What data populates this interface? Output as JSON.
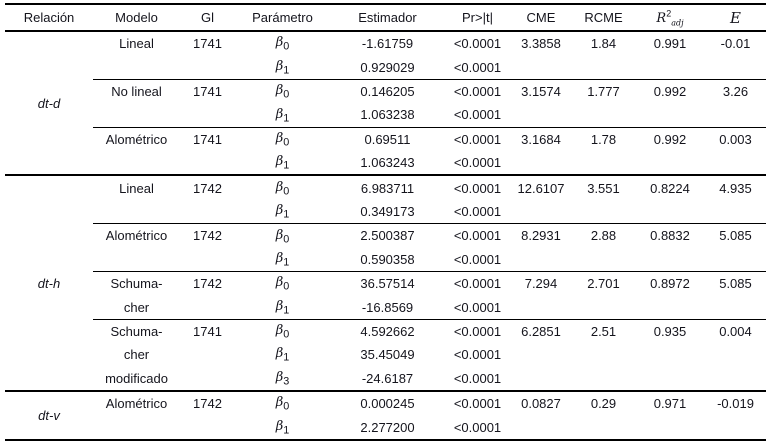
{
  "colors": {
    "text": "#14141c",
    "rule": "#000000",
    "background": "#ffffff"
  },
  "table": {
    "header": {
      "relacion": "Relación",
      "modelo": "Modelo",
      "gl": "Gl",
      "parametro": "Parámetro",
      "estimador": "Estimador",
      "pr": "Pr>|t|",
      "cme": "CME",
      "rcme": "RCME",
      "r2": {
        "base": "R",
        "sup": "2",
        "sub": "adj"
      },
      "e": "E"
    },
    "groups": [
      {
        "label": "dt-d",
        "start": 0,
        "span": 6
      },
      {
        "label": "dt-h",
        "start": 6,
        "span": 9
      },
      {
        "label": "dt-v",
        "start": 15,
        "span": 2
      }
    ],
    "rows": [
      {
        "modelo": "Lineal",
        "gl": "1741",
        "param": "β0",
        "est": "-1.61759",
        "pr": "<0.0001",
        "cme": "3.3858",
        "rcme": "1.84",
        "r2": "0.991",
        "e": "-0.01",
        "sep": "none"
      },
      {
        "modelo": "",
        "gl": "",
        "param": "β1",
        "est": "0.929029",
        "pr": "<0.0001",
        "cme": "",
        "rcme": "",
        "r2": "",
        "e": "",
        "sep": "partial"
      },
      {
        "modelo": "No lineal",
        "gl": "1741",
        "param": "β0",
        "est": "0.146205",
        "pr": "<0.0001",
        "cme": "3.1574",
        "rcme": "1.777",
        "r2": "0.992",
        "e": "3.26",
        "sep": "none"
      },
      {
        "modelo": "",
        "gl": "",
        "param": "β1",
        "est": "1.063238",
        "pr": "<0.0001",
        "cme": "",
        "rcme": "",
        "r2": "",
        "e": "",
        "sep": "partial"
      },
      {
        "modelo": "Alométrico",
        "gl": "1741",
        "param": "β0",
        "est": "0.69511",
        "pr": "<0.0001",
        "cme": "3.1684",
        "rcme": "1.78",
        "r2": "0.992",
        "e": "0.003",
        "sep": "none"
      },
      {
        "modelo": "",
        "gl": "",
        "param": "β1",
        "est": "1.063243",
        "pr": "<0.0001",
        "cme": "",
        "rcme": "",
        "r2": "",
        "e": "",
        "sep": "full"
      },
      {
        "modelo": "Lineal",
        "gl": "1742",
        "param": "β0",
        "est": "6.983711",
        "pr": "<0.0001",
        "cme": "12.6107",
        "rcme": "3.551",
        "r2": "0.8224",
        "e": "4.935",
        "sep": "none"
      },
      {
        "modelo": "",
        "gl": "",
        "param": "β1",
        "est": "0.349173",
        "pr": "<0.0001",
        "cme": "",
        "rcme": "",
        "r2": "",
        "e": "",
        "sep": "partial"
      },
      {
        "modelo": "Alométrico",
        "gl": "1742",
        "param": "β0",
        "est": "2.500387",
        "pr": "<0.0001",
        "cme": "8.2931",
        "rcme": "2.88",
        "r2": "0.8832",
        "e": "5.085",
        "sep": "none"
      },
      {
        "modelo": "",
        "gl": "",
        "param": "β1",
        "est": "0.590358",
        "pr": "<0.0001",
        "cme": "",
        "rcme": "",
        "r2": "",
        "e": "",
        "sep": "partial"
      },
      {
        "modelo": "Schuma-",
        "gl": "1742",
        "param": "β0",
        "est": "36.57514",
        "pr": "<0.0001",
        "cme": "7.294",
        "rcme": "2.701",
        "r2": "0.8972",
        "e": "5.085",
        "sep": "none"
      },
      {
        "modelo": "cher",
        "gl": "",
        "param": "β1",
        "est": "-16.8569",
        "pr": "<0.0001",
        "cme": "",
        "rcme": "",
        "r2": "",
        "e": "",
        "sep": "partial"
      },
      {
        "modelo": "Schuma-",
        "gl": "1741",
        "param": "β0",
        "est": "4.592662",
        "pr": "<0.0001",
        "cme": "6.2851",
        "rcme": "2.51",
        "r2": "0.935",
        "e": "0.004",
        "sep": "none"
      },
      {
        "modelo": "cher",
        "gl": "",
        "param": "β1",
        "est": "35.45049",
        "pr": "<0.0001",
        "cme": "",
        "rcme": "",
        "r2": "",
        "e": "",
        "sep": "none"
      },
      {
        "modelo": "modificado",
        "gl": "",
        "param": "β3",
        "est": "-24.6187",
        "pr": "<0.0001",
        "cme": "",
        "rcme": "",
        "r2": "",
        "e": "",
        "sep": "full"
      },
      {
        "modelo": "Alométrico",
        "gl": "1742",
        "param": "β0",
        "est": "0.000245",
        "pr": "<0.0001",
        "cme": "0.0827",
        "rcme": "0.29",
        "r2": "0.971",
        "e": "-0.019",
        "sep": "none"
      },
      {
        "modelo": "",
        "gl": "",
        "param": "β1",
        "est": "2.277200",
        "pr": "<0.0001",
        "cme": "",
        "rcme": "",
        "r2": "",
        "e": "",
        "sep": "none"
      }
    ]
  }
}
